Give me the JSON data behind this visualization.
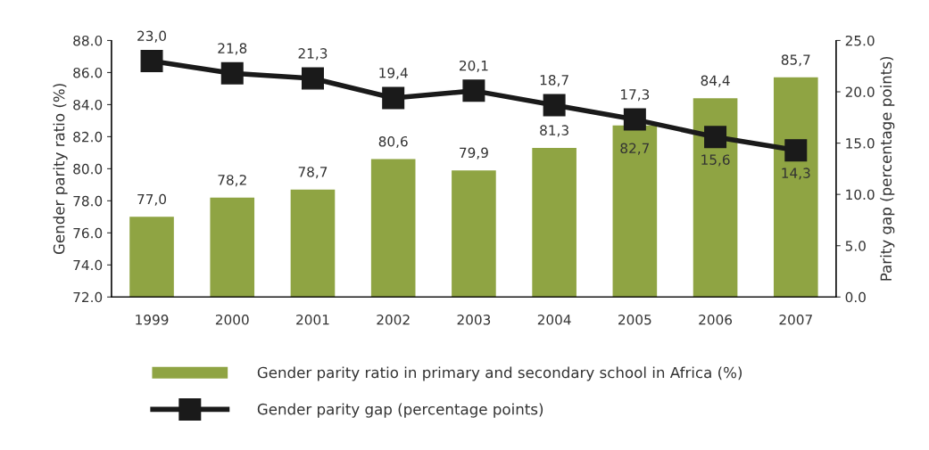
{
  "chart_data": {
    "type": "bar",
    "categories": [
      "1999",
      "2000",
      "2001",
      "2002",
      "2003",
      "2004",
      "2005",
      "2006",
      "2007"
    ],
    "ylabel": "Gender parity ratio (%)",
    "y2label": "Parity gap (percentage points)",
    "ylim": [
      72,
      88
    ],
    "yticks": [
      {
        "value": 72,
        "label": "72.0"
      },
      {
        "value": 74,
        "label": "74.0"
      },
      {
        "value": 76,
        "label": "76.0"
      },
      {
        "value": 78,
        "label": "78.0"
      },
      {
        "value": 80,
        "label": "80.0"
      },
      {
        "value": 82,
        "label": "82.0"
      },
      {
        "value": 84,
        "label": "84.0"
      },
      {
        "value": 86,
        "label": "86.0"
      },
      {
        "value": 88,
        "label": "88.0"
      }
    ],
    "y2lim": [
      0,
      25
    ],
    "y2ticks": [
      {
        "value": 0,
        "label": "0.0"
      },
      {
        "value": 5,
        "label": "5.0"
      },
      {
        "value": 10,
        "label": "10.0"
      },
      {
        "value": 15,
        "label": "15.0"
      },
      {
        "value": 20,
        "label": "20.0"
      },
      {
        "value": 25,
        "label": "25.0"
      }
    ],
    "series": [
      {
        "name": "Gender parity ratio in primary and secondary school in Africa (%)",
        "color": "#8fa443",
        "values": [
          77.0,
          78.2,
          78.7,
          80.6,
          79.9,
          81.3,
          82.7,
          84.4,
          85.7
        ],
        "value_labels": [
          "77,0",
          "78,2",
          "78,7",
          "80,6",
          "79,9",
          "81,3",
          "82,7",
          "84,4",
          "85,7"
        ]
      },
      {
        "name": "Gender parity gap (percentage points)",
        "type": "line",
        "axis": "y2",
        "color": "#1a1a1a",
        "marker": "square",
        "values": [
          23.0,
          21.8,
          21.3,
          19.4,
          20.1,
          18.7,
          17.3,
          15.6,
          14.3
        ],
        "value_labels": [
          "23,0",
          "21,8",
          "21,3",
          "19,4",
          "20,1",
          "18,7",
          "17,3",
          "15,6",
          "14,3"
        ]
      }
    ],
    "grid": false,
    "legend": "bottom"
  }
}
